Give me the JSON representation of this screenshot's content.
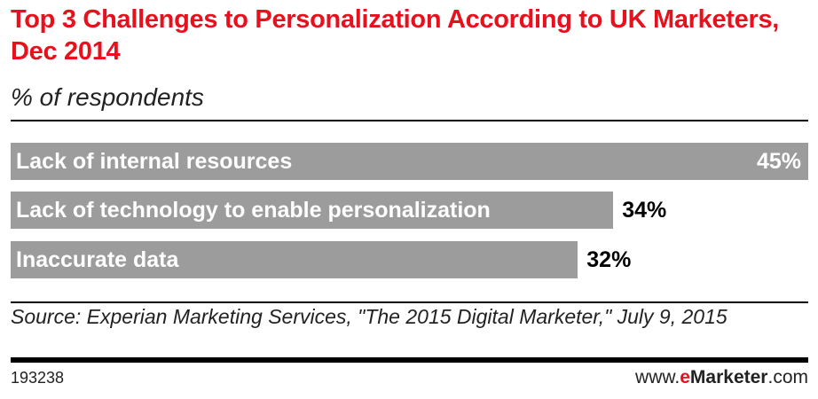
{
  "chart_data": {
    "type": "bar",
    "orientation": "horizontal",
    "title": "Top 3 Challenges to Personalization According to UK Marketers, Dec 2014",
    "subtitle": "% of respondents",
    "categories": [
      "Lack of internal resources",
      "Lack of technology to enable personalization",
      "Inaccurate data"
    ],
    "values": [
      45,
      34,
      32
    ],
    "value_labels": [
      "45%",
      "34%",
      "32%"
    ],
    "xlim": [
      0,
      45
    ],
    "grid": false,
    "bar_color": "#9c9c9c"
  },
  "source": "Source: Experian Marketing Services, \"The 2015 Digital Marketer,\" July 9, 2015",
  "chart_id": "193238",
  "brand": {
    "prefix": "www.",
    "e": "e",
    "name": "Marketer",
    ".com": ".com"
  },
  "colors": {
    "title": "#e8101c",
    "brand_e": "#e8101c"
  }
}
